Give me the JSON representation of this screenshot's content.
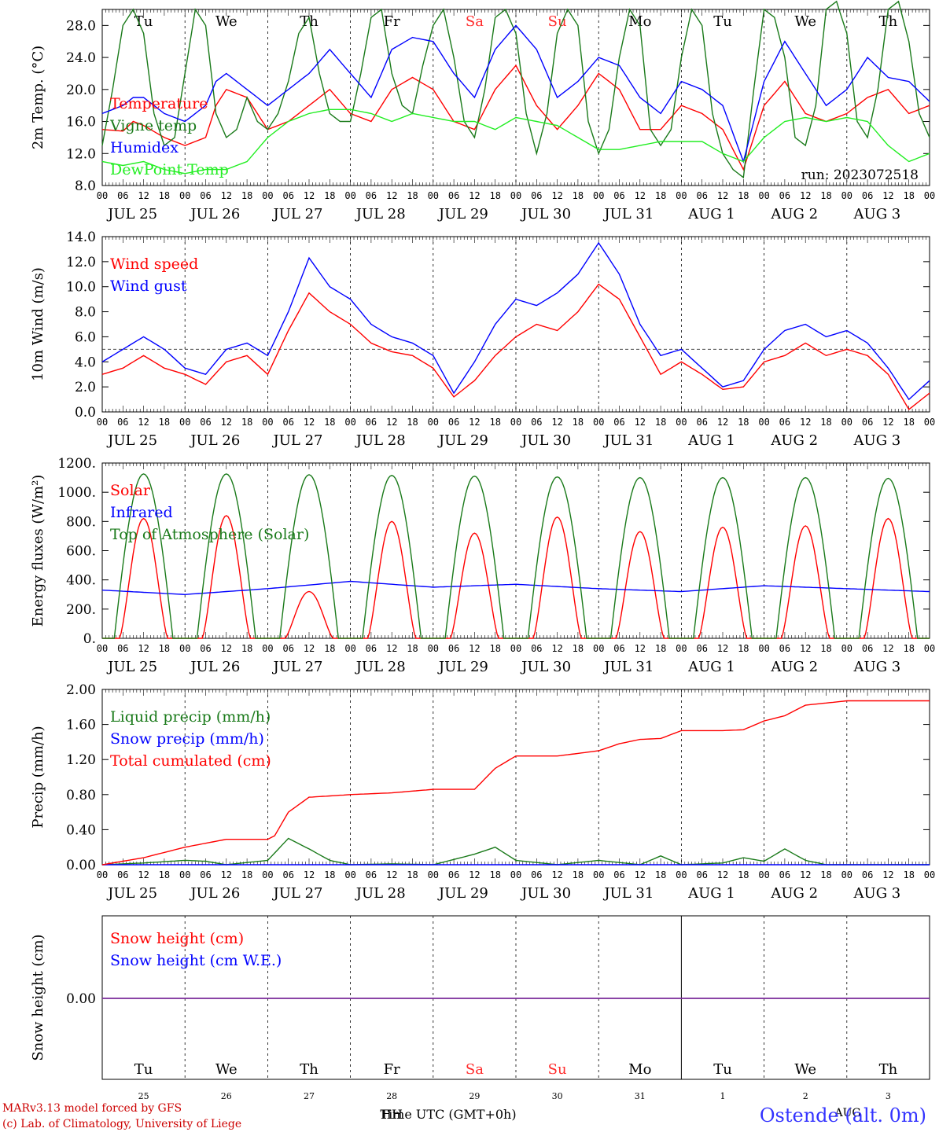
{
  "run_label": "run: 2023072518",
  "hour_labels": [
    "00",
    "06",
    "12",
    "18"
  ],
  "date_labels": [
    "JUL 25",
    "JUL 26",
    "JUL 27",
    "JUL 28",
    "JUL 29",
    "JUL 30",
    "JUL 31",
    "AUG  1",
    "AUG  2",
    "AUG  3"
  ],
  "days": [
    {
      "label": "Tu",
      "weekend": false
    },
    {
      "label": "We",
      "weekend": false
    },
    {
      "label": "Th",
      "weekend": false
    },
    {
      "label": "Fr",
      "weekend": false
    },
    {
      "label": "Sa",
      "weekend": true
    },
    {
      "label": "Su",
      "weekend": true
    },
    {
      "label": "Mo",
      "weekend": false
    },
    {
      "label": "Tu",
      "weekend": false
    },
    {
      "label": "We",
      "weekend": false
    },
    {
      "label": "Th",
      "weekend": false
    }
  ],
  "bottom_day_numbers": [
    "25",
    "26",
    "27",
    "28",
    "29",
    "30",
    "31",
    "1",
    "2",
    "3"
  ],
  "bottom_month_label": "AUG",
  "xlabel": "Time UTC (GMT+0h)",
  "xlabel_overlap": "HH",
  "footer": {
    "line1": "MARv3.13 model forced by GFS",
    "line2": "(c) Lab. of Climatology, University of Liege",
    "station": "Ostende (alt. 0m)"
  },
  "colors": {
    "red": "#ff0000",
    "blue": "#0000ff",
    "green": "#00aa00",
    "darkgreen": "#1a7a1a",
    "lightgreen": "#22ee22",
    "purple": "#7a2a9a",
    "weekend": "#ff2a2a"
  },
  "chart_data": [
    {
      "type": "line",
      "ylabel": "2m Temp. (°C)",
      "ylim": [
        8,
        30
      ],
      "yticks": [
        "8.0",
        "12.0",
        "16.0",
        "20.0",
        "24.0",
        "28.0"
      ],
      "x_unit": "hours since JUL 25 00 UTC",
      "series": [
        {
          "name": "Temperature",
          "color": "#ff0000",
          "x": [
            0,
            6,
            9,
            12,
            18,
            24,
            30,
            33,
            36,
            42,
            48,
            54,
            60,
            66,
            72,
            78,
            84,
            90,
            96,
            102,
            108,
            114,
            120,
            126,
            132,
            138,
            144,
            150,
            156,
            162,
            168,
            174,
            180,
            186,
            192,
            198,
            204,
            210,
            216,
            222,
            228,
            234,
            240
          ],
          "y": [
            15,
            14.8,
            16,
            15.5,
            14,
            13,
            14,
            18,
            20,
            19,
            15,
            16,
            18,
            20,
            17,
            16,
            20,
            21.5,
            20,
            16,
            15,
            20,
            23,
            18,
            15,
            18,
            22,
            20,
            15,
            15,
            18,
            17,
            15,
            10,
            18,
            21,
            17,
            16,
            17,
            19,
            20,
            17,
            18
          ]
        },
        {
          "name": "Vigne temp",
          "color": "#1a7a1a",
          "x": [
            0,
            3,
            6,
            9,
            12,
            15,
            18,
            21,
            24,
            27,
            30,
            33,
            36,
            39,
            42,
            45,
            48,
            51,
            54,
            57,
            60,
            63,
            66,
            69,
            72,
            75,
            78,
            81,
            84,
            87,
            90,
            93,
            96,
            99,
            102,
            105,
            108,
            111,
            114,
            117,
            120,
            123,
            126,
            129,
            132,
            135,
            138,
            141,
            144,
            147,
            150,
            153,
            156,
            159,
            162,
            165,
            168,
            171,
            174,
            177,
            180,
            183,
            186,
            189,
            192,
            195,
            198,
            201,
            204,
            207,
            210,
            213,
            216,
            219,
            222,
            225,
            228,
            231,
            234,
            237,
            240
          ],
          "y": [
            13,
            20,
            28,
            30,
            27,
            17,
            13,
            14,
            22,
            30,
            28,
            17,
            14,
            15,
            19,
            16,
            15,
            17,
            21,
            27,
            29,
            22,
            17,
            16,
            16,
            22,
            29,
            30,
            22,
            18,
            17,
            23,
            28,
            30,
            24,
            16,
            14,
            20,
            29,
            30,
            27,
            17,
            12,
            17,
            27,
            30,
            28,
            16,
            12,
            15,
            24,
            30,
            28,
            15,
            13,
            15,
            24,
            30,
            28,
            17,
            12,
            10,
            9,
            20,
            30,
            29,
            24,
            14,
            13,
            18,
            30,
            31,
            27,
            16,
            14,
            20,
            30,
            31,
            26,
            17,
            14
          ]
        },
        {
          "name": "Humidex",
          "color": "#0000ff",
          "x": [
            0,
            6,
            9,
            12,
            18,
            24,
            30,
            33,
            36,
            42,
            48,
            54,
            60,
            66,
            72,
            78,
            84,
            90,
            96,
            102,
            108,
            114,
            120,
            126,
            132,
            138,
            144,
            150,
            156,
            162,
            168,
            174,
            180,
            186,
            192,
            198,
            204,
            210,
            216,
            222,
            228,
            234,
            240
          ],
          "y": [
            17,
            18,
            19,
            19,
            17,
            16,
            18,
            21,
            22,
            20,
            18,
            20,
            22,
            25,
            22,
            19,
            25,
            26.5,
            26,
            22,
            19,
            25,
            28,
            25,
            19,
            21,
            24,
            23,
            19,
            17,
            21,
            20,
            18,
            11,
            21,
            26,
            22,
            18,
            20,
            24,
            21.5,
            21,
            18.5
          ]
        },
        {
          "name": "DewPoint Temp",
          "color": "#22ee22",
          "x": [
            0,
            6,
            12,
            18,
            24,
            30,
            36,
            42,
            48,
            54,
            60,
            66,
            72,
            78,
            84,
            90,
            96,
            102,
            108,
            114,
            120,
            126,
            132,
            138,
            144,
            150,
            156,
            162,
            168,
            174,
            180,
            186,
            192,
            198,
            204,
            210,
            216,
            222,
            228,
            234,
            240
          ],
          "y": [
            11,
            10.5,
            11,
            10,
            9.5,
            10,
            10,
            11,
            14,
            16,
            17,
            17.5,
            17.5,
            17,
            16,
            17,
            16.5,
            16,
            16,
            15,
            16.5,
            16,
            15.5,
            14,
            12.5,
            12.5,
            13,
            13.5,
            13.5,
            13.5,
            12,
            11,
            14,
            16,
            16.5,
            16,
            16.5,
            16,
            13,
            11,
            12
          ]
        }
      ]
    },
    {
      "type": "line",
      "ylabel": "10m Wind (m/s)",
      "ylim": [
        0,
        14
      ],
      "yticks": [
        "0.0",
        "2.0",
        "4.0",
        "6.0",
        "8.0",
        "10.0",
        "12.0",
        "14.0"
      ],
      "reference_line": 5,
      "series": [
        {
          "name": "Wind speed",
          "color": "#ff0000",
          "x": [
            0,
            6,
            12,
            18,
            24,
            30,
            36,
            42,
            48,
            54,
            60,
            66,
            72,
            78,
            84,
            90,
            96,
            102,
            108,
            114,
            120,
            126,
            132,
            138,
            144,
            150,
            156,
            162,
            168,
            174,
            180,
            186,
            192,
            198,
            204,
            210,
            216,
            222,
            228,
            234,
            240
          ],
          "y": [
            3,
            3.5,
            4.5,
            3.5,
            3,
            2.2,
            4,
            4.5,
            3,
            6.5,
            9.5,
            8,
            7,
            5.5,
            4.8,
            4.5,
            3.5,
            1.2,
            2.5,
            4.5,
            6,
            7,
            6.5,
            8,
            10.2,
            9,
            6,
            3,
            4,
            3,
            1.8,
            2,
            4,
            4.5,
            5.5,
            4.5,
            5,
            4.5,
            3,
            0.2,
            1.5
          ]
        },
        {
          "name": "Wind gust",
          "color": "#0000ff",
          "x": [
            0,
            6,
            12,
            18,
            24,
            30,
            36,
            42,
            48,
            54,
            60,
            66,
            72,
            78,
            84,
            90,
            96,
            102,
            108,
            114,
            120,
            126,
            132,
            138,
            144,
            150,
            156,
            162,
            168,
            174,
            180,
            186,
            192,
            198,
            204,
            210,
            216,
            222,
            228,
            234,
            240
          ],
          "y": [
            4,
            5,
            6,
            5,
            3.5,
            3,
            5,
            5.5,
            4.5,
            8,
            12.3,
            10,
            9,
            7,
            6,
            5.5,
            4.5,
            1.5,
            4,
            7,
            9,
            8.5,
            9.5,
            11,
            13.5,
            11,
            7,
            4.5,
            5,
            3.5,
            2,
            2.5,
            5,
            6.5,
            7,
            6,
            6.5,
            5.5,
            3.5,
            1,
            2.5
          ]
        }
      ]
    },
    {
      "type": "line",
      "ylabel": "Energy fluxes (W/m²)",
      "ylim": [
        0,
        1200
      ],
      "yticks": [
        "0.",
        "200.",
        "400.",
        "600.",
        "800.",
        "1000.",
        "1200."
      ],
      "series": [
        {
          "name": "Solar",
          "color": "#ff0000",
          "daily_peaks": [
            820,
            840,
            320,
            800,
            720,
            830,
            730,
            760,
            770,
            820
          ]
        },
        {
          "name": "Infrared",
          "color": "#0000ff",
          "x": [
            0,
            24,
            48,
            72,
            96,
            120,
            144,
            168,
            192,
            216,
            240
          ],
          "y": [
            330,
            300,
            340,
            390,
            350,
            370,
            340,
            320,
            360,
            340,
            320
          ]
        },
        {
          "name": "Top of Atmosphere (Solar)",
          "color": "#1a7a1a",
          "daily_peaks": [
            1125,
            1125,
            1120,
            1115,
            1110,
            1105,
            1100,
            1100,
            1100,
            1095
          ]
        }
      ]
    },
    {
      "type": "line",
      "ylabel": "Precip (mm/h)",
      "ylim": [
        0,
        2
      ],
      "yticks": [
        "0.00",
        "0.40",
        "0.80",
        "1.20",
        "1.60",
        "2.00"
      ],
      "series": [
        {
          "name": "Liquid precip (mm/h)",
          "color": "#1a7a1a",
          "x": [
            0,
            12,
            24,
            30,
            36,
            48,
            54,
            60,
            66,
            72,
            84,
            96,
            108,
            114,
            120,
            132,
            144,
            156,
            162,
            168,
            180,
            186,
            192,
            198,
            204,
            210,
            240
          ],
          "y": [
            0,
            0.02,
            0.05,
            0.04,
            0,
            0.05,
            0.3,
            0.18,
            0.05,
            0,
            0.01,
            0,
            0.12,
            0.2,
            0.05,
            0,
            0.05,
            0,
            0.1,
            0,
            0.02,
            0.08,
            0.04,
            0.18,
            0.05,
            0,
            0
          ]
        },
        {
          "name": "Snow precip (mm/h)",
          "color": "#0000ff",
          "x": [
            0,
            240
          ],
          "y": [
            0,
            0
          ]
        },
        {
          "name": "Total cumulated (cm)",
          "color": "#ff0000",
          "x": [
            0,
            12,
            24,
            36,
            48,
            50,
            54,
            60,
            72,
            84,
            96,
            108,
            114,
            120,
            132,
            144,
            150,
            156,
            162,
            168,
            180,
            186,
            192,
            198,
            204,
            216,
            240
          ],
          "y": [
            0,
            0.08,
            0.2,
            0.29,
            0.29,
            0.33,
            0.6,
            0.77,
            0.8,
            0.82,
            0.86,
            0.86,
            1.1,
            1.24,
            1.24,
            1.3,
            1.38,
            1.43,
            1.44,
            1.53,
            1.53,
            1.54,
            1.64,
            1.7,
            1.82,
            1.87,
            1.87
          ]
        }
      ]
    },
    {
      "type": "line",
      "ylabel": "Snow height (cm)",
      "yticks": [
        "0.00"
      ],
      "series": [
        {
          "name": "Snow height (cm)",
          "color": "#ff0000",
          "x": [
            0,
            240
          ],
          "y": [
            0,
            0
          ]
        },
        {
          "name": "Snow height (cm W.E.)",
          "color": "#0000ff",
          "x": [
            0,
            240
          ],
          "y": [
            0,
            0
          ]
        }
      ]
    }
  ]
}
